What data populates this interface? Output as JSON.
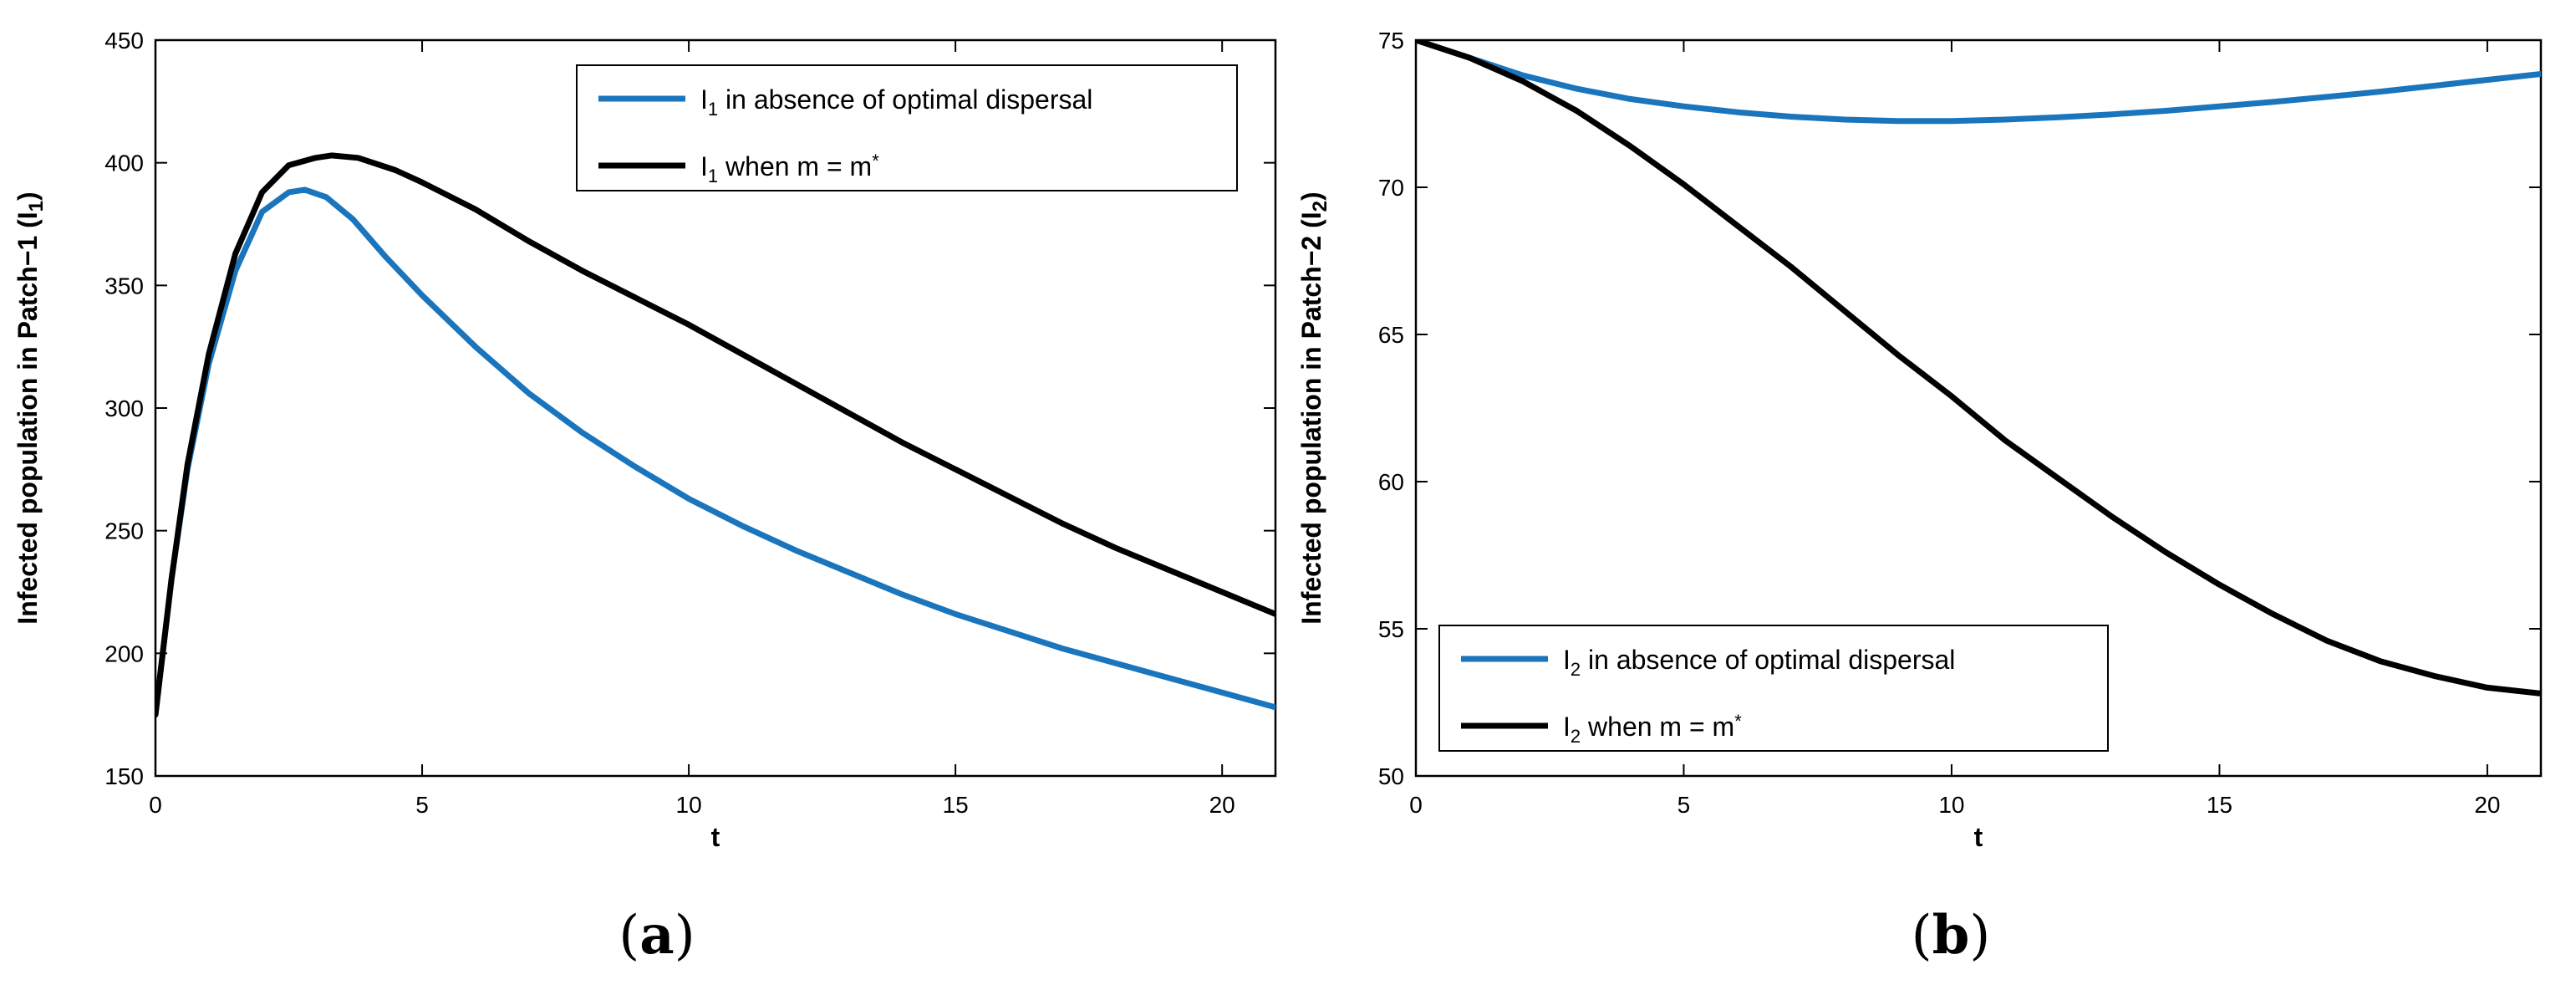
{
  "chart_data": [
    {
      "type": "line",
      "xlabel": "t",
      "ylabel": "Infected population in Patch-1 (I1)",
      "ylabel_parts": {
        "main": "Infected population in Patch−1 (I",
        "sub": "1",
        "close": ")"
      },
      "xlim": [
        0,
        21
      ],
      "ylim": [
        150,
        450
      ],
      "xticks": [
        0,
        5,
        10,
        15,
        20
      ],
      "xtick_labels": [
        "0",
        "5",
        "10",
        "15",
        "20"
      ],
      "yticks": [
        150,
        200,
        250,
        300,
        350,
        400,
        450
      ],
      "ytick_labels": [
        "150",
        "200",
        "250",
        "300",
        "350",
        "400",
        "450"
      ],
      "grid": false,
      "legend_position": "top-right",
      "panel_label": {
        "open": "(",
        "letter": "a",
        "close": ")"
      },
      "series": [
        {
          "name": "I1 in absence of optimal dispersal",
          "legend": {
            "main": "I",
            "sub": "1",
            "rest": " in absence of optimal dispersal",
            "sup": ""
          },
          "color": "#1a75bc",
          "x": [
            0,
            0.3,
            0.6,
            1.0,
            1.5,
            2.0,
            2.5,
            2.8,
            3.2,
            3.7,
            4.3,
            5.0,
            6.0,
            7.0,
            8.0,
            9.0,
            10.0,
            11.0,
            12.0,
            13.0,
            14.0,
            15.0,
            16.0,
            17.0,
            18.0,
            19.0,
            20.0,
            21.0
          ],
          "values": [
            175,
            230,
            275,
            318,
            356,
            380,
            388,
            389,
            386,
            377,
            362,
            346,
            325,
            306,
            290,
            276,
            263,
            252,
            242,
            233,
            224,
            216,
            209,
            202,
            196,
            190,
            184,
            178
          ]
        },
        {
          "name": "I1 when m = m*",
          "legend": {
            "main": "I",
            "sub": "1",
            "rest": " when m = m",
            "sup": "*"
          },
          "color": "#000000",
          "x": [
            0,
            0.3,
            0.6,
            1.0,
            1.5,
            2.0,
            2.5,
            3.0,
            3.3,
            3.8,
            4.5,
            5.0,
            6.0,
            7.0,
            8.0,
            9.0,
            10.0,
            11.0,
            12.0,
            13.0,
            14.0,
            15.0,
            16.0,
            17.0,
            18.0,
            19.0,
            20.0,
            21.0
          ],
          "values": [
            175,
            230,
            277,
            322,
            363,
            388,
            399,
            402,
            403,
            402,
            397,
            392,
            381,
            368,
            356,
            345,
            334,
            322,
            310,
            298,
            286,
            275,
            264,
            253,
            243,
            234,
            225,
            216
          ]
        }
      ]
    },
    {
      "type": "line",
      "xlabel": "t",
      "ylabel": "Infected population in Patch-2 (I2)",
      "ylabel_parts": {
        "main": "Infected population in Patch−2 (I",
        "sub": "2",
        "close": ")"
      },
      "xlim": [
        0,
        21
      ],
      "ylim": [
        50,
        75
      ],
      "xticks": [
        0,
        5,
        10,
        15,
        20
      ],
      "xtick_labels": [
        "0",
        "5",
        "10",
        "15",
        "20"
      ],
      "yticks": [
        50,
        55,
        60,
        65,
        70,
        75
      ],
      "ytick_labels": [
        "50",
        "55",
        "60",
        "65",
        "70",
        "75"
      ],
      "grid": false,
      "legend_position": "bottom-left",
      "panel_label": {
        "open": "(",
        "letter": "b",
        "close": ")"
      },
      "series": [
        {
          "name": "I2 in absence of optimal dispersal",
          "legend": {
            "main": "I",
            "sub": "2",
            "rest": " in absence of optimal dispersal",
            "sup": ""
          },
          "color": "#1a75bc",
          "x": [
            0,
            1,
            2,
            3,
            4,
            5,
            6,
            7,
            8,
            9,
            10,
            11,
            12,
            13,
            14,
            15,
            16,
            17,
            18,
            19,
            20,
            21
          ],
          "values": [
            75.0,
            74.4,
            73.8,
            73.35,
            73.0,
            72.75,
            72.55,
            72.4,
            72.3,
            72.25,
            72.25,
            72.3,
            72.38,
            72.48,
            72.6,
            72.75,
            72.9,
            73.07,
            73.25,
            73.45,
            73.65,
            73.85
          ]
        },
        {
          "name": "I2 when m = m*",
          "legend": {
            "main": "I",
            "sub": "2",
            "rest": " when m = m",
            "sup": "*"
          },
          "color": "#000000",
          "x": [
            0,
            1,
            2,
            3,
            4,
            5,
            6,
            7,
            8,
            9,
            10,
            11,
            12,
            13,
            14,
            15,
            16,
            17,
            18,
            19,
            20,
            21
          ],
          "values": [
            75.0,
            74.4,
            73.6,
            72.6,
            71.4,
            70.1,
            68.7,
            67.3,
            65.8,
            64.3,
            62.9,
            61.4,
            60.1,
            58.8,
            57.6,
            56.5,
            55.5,
            54.6,
            53.9,
            53.4,
            53.0,
            52.8
          ]
        }
      ]
    }
  ]
}
